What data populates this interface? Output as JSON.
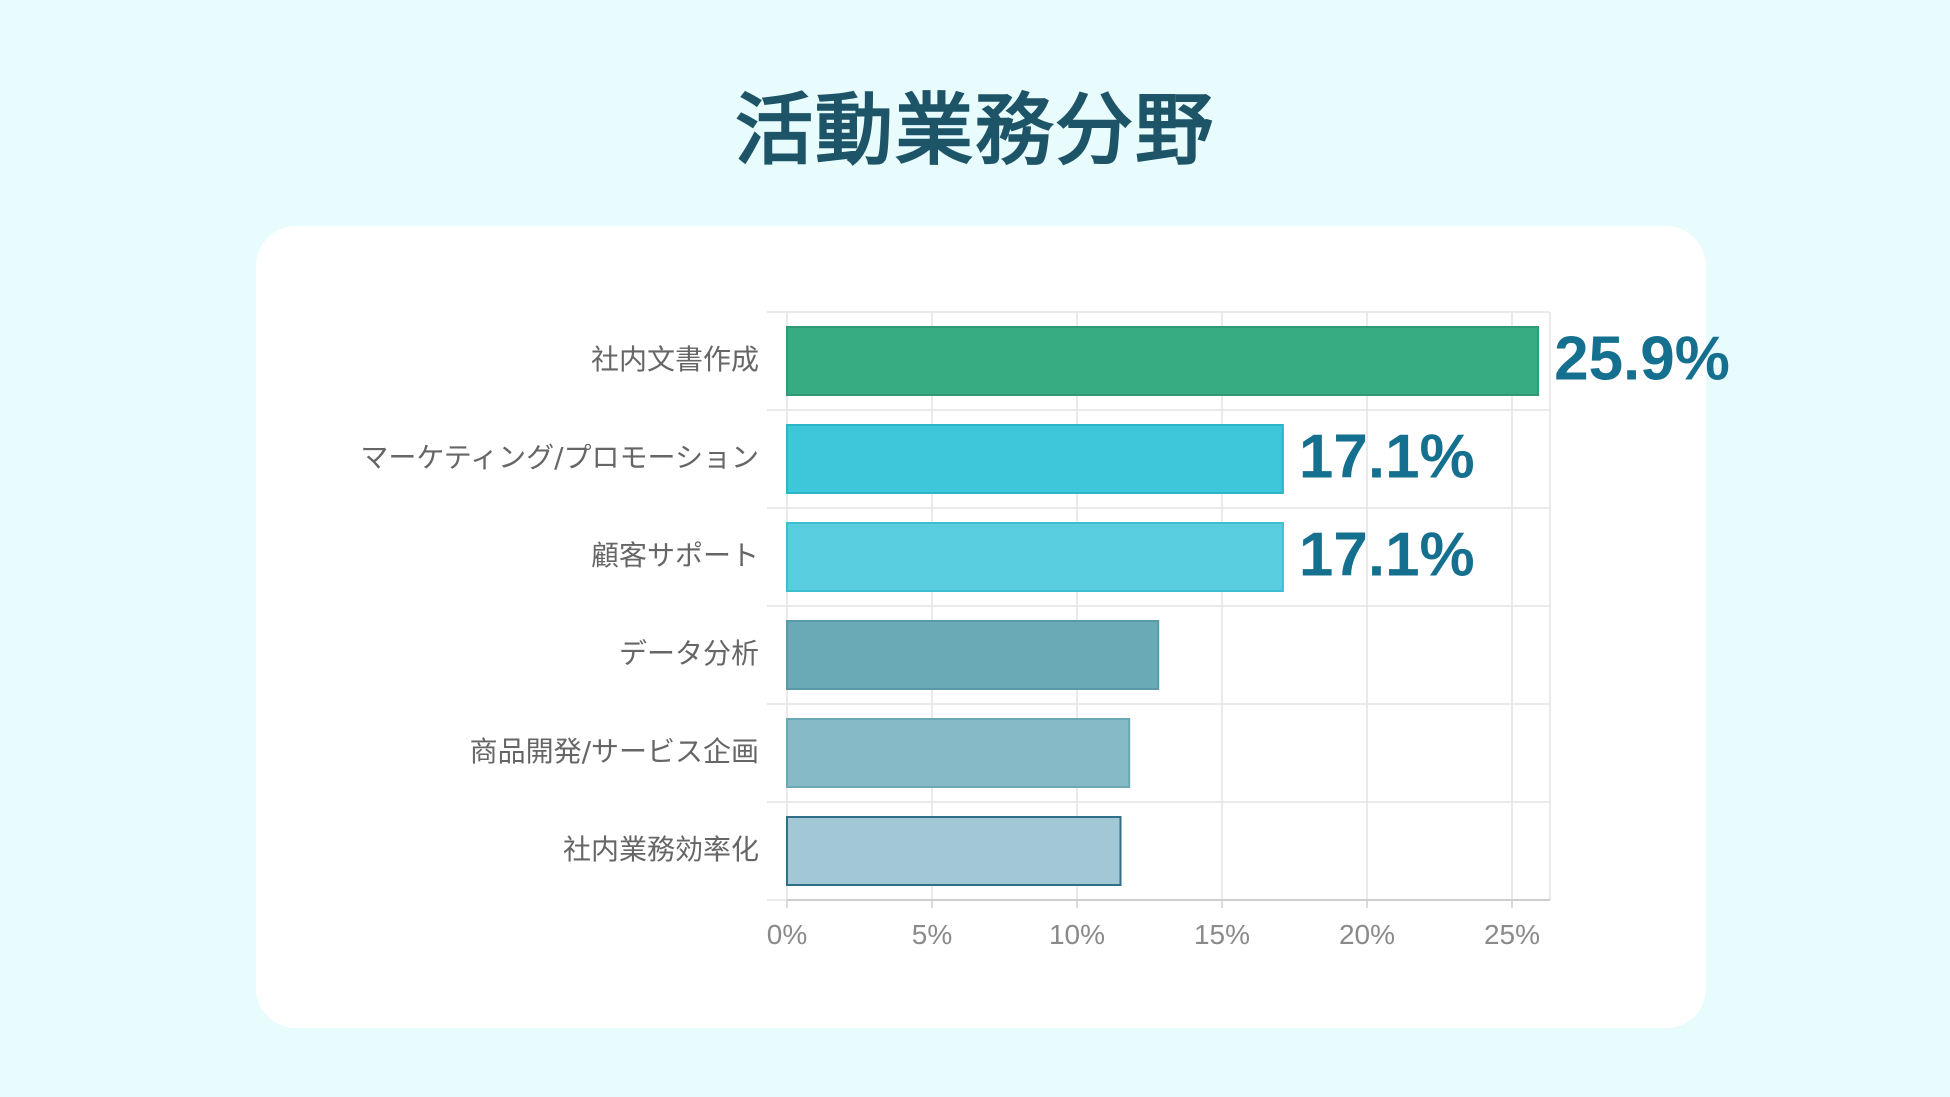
{
  "title": "活動業務分野",
  "chart_data": {
    "type": "bar",
    "orientation": "horizontal",
    "title": "活動業務分野",
    "categories": [
      "社内文書作成",
      "マーケティング/プロモーション",
      "顧客サポート",
      "データ分析",
      "商品開発/サービス企画",
      "社内業務効率化"
    ],
    "values": [
      25.9,
      17.1,
      17.1,
      12.8,
      11.8,
      11.5
    ],
    "data_labels": [
      "25.9%",
      "17.1%",
      "17.1%",
      "",
      "",
      ""
    ],
    "xticks": [
      "0%",
      "5%",
      "10%",
      "15%",
      "20%",
      "25%"
    ],
    "xlim": [
      0,
      26.5
    ],
    "grid": true,
    "legend": "none",
    "colors": [
      "#37ab82",
      "#3ec6db",
      "#59cee1",
      "#6aa9b6",
      "#86bac6",
      "#a1c8d4"
    ],
    "border_colors": [
      "#2f9a74",
      "#2eb4c9",
      "#3dbdd0",
      "#5a9aa8",
      "#6aa8b6",
      "#2f6f88"
    ],
    "label_color": "#156f8e"
  }
}
